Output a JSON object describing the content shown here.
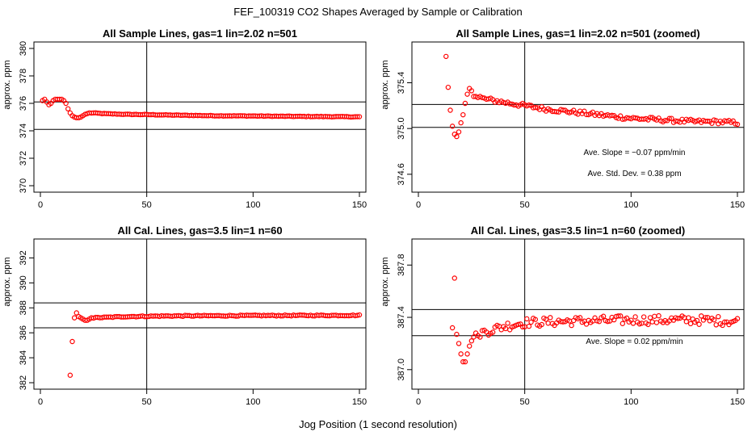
{
  "figure": {
    "title": "FEF_100319  CO2 Shapes Averaged by Sample or Calibration",
    "xlabel": "Jog Position (1 second resolution)"
  },
  "colors": {
    "points": "#ff0000",
    "axes": "#000000",
    "background": "#ffffff"
  },
  "chart_data": [
    {
      "type": "scatter",
      "title": "All Sample Lines, gas=1 lin=2.02 n=501",
      "ylabel": "approx. ppm",
      "xlim": [
        0,
        150
      ],
      "ylim": [
        370,
        380
      ],
      "xticks": [
        0,
        50,
        100,
        150
      ],
      "yticks": [
        370,
        372,
        374,
        376,
        378,
        380
      ],
      "vline_x": 50,
      "hlines_y": [
        374.1,
        376.1
      ],
      "annotations": [],
      "knots": [
        [
          1,
          376.2
        ],
        [
          2,
          376.3
        ],
        [
          3,
          376.1
        ],
        [
          4,
          375.9
        ],
        [
          5,
          376.0
        ],
        [
          6,
          376.2
        ],
        [
          7,
          376.3
        ],
        [
          8,
          376.3
        ],
        [
          9,
          376.3
        ],
        [
          10,
          376.3
        ],
        [
          11,
          376.2
        ],
        [
          12,
          376.0
        ],
        [
          13,
          375.6
        ],
        [
          14,
          375.3
        ],
        [
          15,
          375.1
        ],
        [
          16,
          375.0
        ],
        [
          17,
          374.95
        ],
        [
          18,
          374.95
        ],
        [
          19,
          375.0
        ],
        [
          20,
          375.1
        ],
        [
          21,
          375.2
        ],
        [
          23,
          375.3
        ],
        [
          25,
          375.3
        ],
        [
          30,
          375.25
        ],
        [
          40,
          375.2
        ],
        [
          50,
          375.18
        ],
        [
          60,
          375.15
        ],
        [
          80,
          375.1
        ],
        [
          100,
          375.08
        ],
        [
          120,
          375.05
        ],
        [
          150,
          375.02
        ]
      ],
      "noise": 0.02,
      "x_start": 1
    },
    {
      "type": "scatter",
      "title": "All Sample Lines, gas=1 lin=2.02 n=501 (zoomed)",
      "ylabel": "approx. ppm",
      "xlim": [
        0,
        150
      ],
      "ylim": [
        374.5,
        375.7
      ],
      "xticks": [
        0,
        50,
        100,
        150
      ],
      "yticks": [
        374.6,
        375.0,
        375.4
      ],
      "vline_x": 50,
      "hlines_y": [
        375.01,
        375.21
      ],
      "annotations": [
        "Ave. Slope =  −0.07  ppm/min",
        "Ave. Std. Dev. =  0.38  ppm"
      ],
      "points": [
        [
          13,
          375.63
        ],
        [
          14,
          375.36
        ],
        [
          15,
          375.16
        ],
        [
          16,
          375.02
        ],
        [
          17,
          374.95
        ],
        [
          18,
          374.93
        ],
        [
          19,
          374.97
        ],
        [
          20,
          375.05
        ],
        [
          21,
          375.12
        ],
        [
          22,
          375.22
        ],
        [
          23,
          375.3
        ],
        [
          24,
          375.35
        ],
        [
          25,
          375.33
        ],
        [
          26,
          375.28
        ],
        [
          27,
          375.28
        ],
        [
          28,
          375.27
        ],
        [
          29,
          375.28
        ],
        [
          30,
          375.27
        ]
      ],
      "knots": [
        [
          31,
          375.26
        ],
        [
          40,
          375.23
        ],
        [
          50,
          375.2
        ],
        [
          60,
          375.17
        ],
        [
          70,
          375.15
        ],
        [
          80,
          375.13
        ],
        [
          90,
          375.11
        ],
        [
          100,
          375.09
        ],
        [
          110,
          375.08
        ],
        [
          120,
          375.07
        ],
        [
          130,
          375.06
        ],
        [
          140,
          375.06
        ],
        [
          150,
          375.05
        ]
      ],
      "noise": 0.018,
      "x_start": 31
    },
    {
      "type": "scatter",
      "title": "All Cal. Lines, gas=3.5 lin=1 n=60",
      "ylabel": "approx. ppm",
      "xlim": [
        0,
        150
      ],
      "ylim": [
        382,
        393
      ],
      "xticks": [
        0,
        50,
        100,
        150
      ],
      "yticks": [
        382,
        384,
        386,
        388,
        390,
        392
      ],
      "vline_x": 50,
      "hlines_y": [
        386.4,
        388.4
      ],
      "annotations": [],
      "points": [
        [
          14,
          382.6
        ],
        [
          15,
          385.3
        ],
        [
          16,
          387.2
        ],
        [
          17,
          387.6
        ],
        [
          18,
          387.3
        ],
        [
          19,
          387.2
        ],
        [
          20,
          387.1
        ],
        [
          21,
          387.0
        ],
        [
          22,
          387.0
        ],
        [
          23,
          387.1
        ],
        [
          24,
          387.2
        ]
      ],
      "knots": [
        [
          25,
          387.2
        ],
        [
          40,
          387.3
        ],
        [
          60,
          387.35
        ],
        [
          100,
          387.38
        ],
        [
          150,
          387.4
        ]
      ],
      "noise": 0.04,
      "x_start": 25
    },
    {
      "type": "scatter",
      "title": "All Cal. Lines, gas=3.5 lin=1 n=60 (zoomed)",
      "ylabel": "approx. ppm",
      "xlim": [
        0,
        150
      ],
      "ylim": [
        386.9,
        387.95
      ],
      "xticks": [
        0,
        50,
        100,
        150
      ],
      "yticks": [
        387.0,
        387.4,
        387.8
      ],
      "vline_x": 50,
      "hlines_y": [
        387.26,
        387.46
      ],
      "annotations": [
        "Ave. Slope =  0.02  ppm/min"
      ],
      "points": [
        [
          16,
          387.32
        ],
        [
          17,
          387.7
        ],
        [
          18,
          387.27
        ],
        [
          19,
          387.2
        ],
        [
          20,
          387.12
        ],
        [
          21,
          387.06
        ],
        [
          22,
          387.06
        ],
        [
          23,
          387.12
        ],
        [
          24,
          387.18
        ],
        [
          25,
          387.22
        ],
        [
          26,
          387.25
        ],
        [
          27,
          387.28
        ],
        [
          28,
          387.26
        ]
      ],
      "knots": [
        [
          29,
          387.28
        ],
        [
          40,
          387.33
        ],
        [
          50,
          387.36
        ],
        [
          70,
          387.37
        ],
        [
          100,
          387.38
        ],
        [
          130,
          387.38
        ],
        [
          150,
          387.37
        ]
      ],
      "noise": 0.035,
      "x_start": 29
    }
  ]
}
